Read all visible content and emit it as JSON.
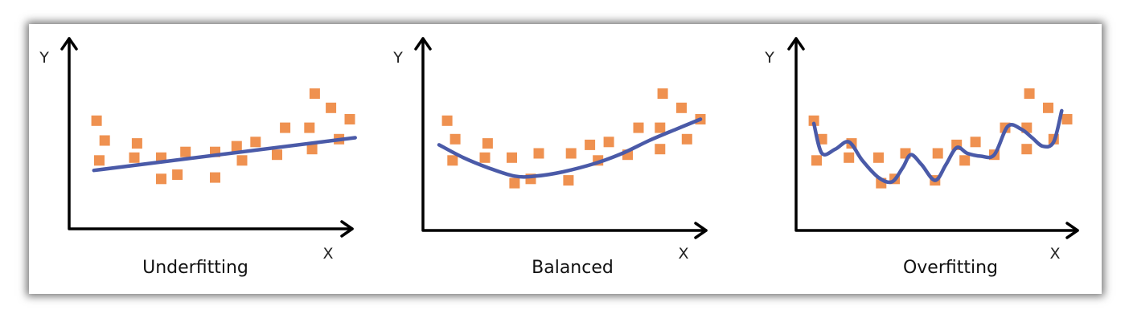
{
  "colors": {
    "point": "#ef9150",
    "curve": "#4a5aa8",
    "axis": "#000000"
  },
  "panels": [
    {
      "id": "underfitting",
      "caption": "Underfitting",
      "x_axis_label": "X",
      "y_axis_label": "Y",
      "points": [
        [
          0.6,
          6.2
        ],
        [
          0.9,
          4.8
        ],
        [
          0.7,
          3.4
        ],
        [
          2.1,
          4.6
        ],
        [
          2.0,
          3.6
        ],
        [
          3.0,
          3.6
        ],
        [
          3.0,
          2.1
        ],
        [
          3.6,
          2.4
        ],
        [
          3.9,
          4.0
        ],
        [
          5.0,
          4.0
        ],
        [
          5.0,
          2.2
        ],
        [
          5.8,
          4.4
        ],
        [
          6.0,
          3.4
        ],
        [
          6.5,
          4.7
        ],
        [
          7.3,
          3.8
        ],
        [
          7.6,
          5.7
        ],
        [
          8.5,
          5.7
        ],
        [
          8.6,
          4.2
        ],
        [
          8.7,
          8.1
        ],
        [
          9.3,
          7.1
        ],
        [
          9.6,
          4.9
        ],
        [
          10.0,
          6.3
        ]
      ],
      "curve": [
        [
          0.5,
          2.7
        ],
        [
          10.2,
          5.0
        ]
      ]
    },
    {
      "id": "balanced",
      "caption": "Balanced",
      "x_axis_label": "X",
      "y_axis_label": "Y",
      "points": [
        [
          0.6,
          6.2
        ],
        [
          0.9,
          4.9
        ],
        [
          0.8,
          3.4
        ],
        [
          2.1,
          4.6
        ],
        [
          2.0,
          3.6
        ],
        [
          3.0,
          3.6
        ],
        [
          3.1,
          1.8
        ],
        [
          3.7,
          2.1
        ],
        [
          4.0,
          3.9
        ],
        [
          5.2,
          3.9
        ],
        [
          5.1,
          2.0
        ],
        [
          5.9,
          4.5
        ],
        [
          6.2,
          3.4
        ],
        [
          6.6,
          4.7
        ],
        [
          7.3,
          3.8
        ],
        [
          7.7,
          5.7
        ],
        [
          8.5,
          5.7
        ],
        [
          8.5,
          4.2
        ],
        [
          8.6,
          8.1
        ],
        [
          9.3,
          7.1
        ],
        [
          9.5,
          4.9
        ],
        [
          10.0,
          6.3
        ]
      ],
      "curve": [
        [
          0.3,
          4.5
        ],
        [
          1.2,
          3.6
        ],
        [
          2.1,
          2.9
        ],
        [
          3.1,
          2.3
        ],
        [
          3.9,
          2.3
        ],
        [
          4.9,
          2.6
        ],
        [
          6.1,
          3.2
        ],
        [
          7.1,
          3.9
        ],
        [
          8.1,
          4.8
        ],
        [
          9.1,
          5.6
        ],
        [
          10.0,
          6.3
        ]
      ]
    },
    {
      "id": "overfitting",
      "caption": "Overfitting",
      "x_axis_label": "X",
      "y_axis_label": "Y",
      "points": [
        [
          0.6,
          6.2
        ],
        [
          0.9,
          4.9
        ],
        [
          0.7,
          3.4
        ],
        [
          2.0,
          4.6
        ],
        [
          1.9,
          3.6
        ],
        [
          3.0,
          3.6
        ],
        [
          3.1,
          1.8
        ],
        [
          3.6,
          2.1
        ],
        [
          4.0,
          3.9
        ],
        [
          5.2,
          3.9
        ],
        [
          5.1,
          2.0
        ],
        [
          5.9,
          4.5
        ],
        [
          6.2,
          3.4
        ],
        [
          6.6,
          4.7
        ],
        [
          7.3,
          3.8
        ],
        [
          7.7,
          5.7
        ],
        [
          8.5,
          5.7
        ],
        [
          8.5,
          4.2
        ],
        [
          8.6,
          8.1
        ],
        [
          9.3,
          7.1
        ],
        [
          9.5,
          4.9
        ],
        [
          10.0,
          6.3
        ]
      ],
      "curve": [
        [
          0.6,
          6.0
        ],
        [
          0.9,
          3.9
        ],
        [
          1.4,
          4.2
        ],
        [
          1.9,
          4.7
        ],
        [
          2.4,
          3.4
        ],
        [
          3.0,
          2.2
        ],
        [
          3.5,
          1.9
        ],
        [
          3.9,
          2.9
        ],
        [
          4.2,
          3.8
        ],
        [
          4.6,
          3.1
        ],
        [
          5.1,
          2.0
        ],
        [
          5.5,
          3.1
        ],
        [
          5.9,
          4.3
        ],
        [
          6.3,
          3.9
        ],
        [
          6.8,
          3.7
        ],
        [
          7.3,
          3.8
        ],
        [
          7.8,
          5.8
        ],
        [
          8.3,
          5.6
        ],
        [
          8.7,
          5.0
        ],
        [
          9.1,
          4.4
        ],
        [
          9.5,
          4.7
        ],
        [
          9.8,
          6.9
        ]
      ]
    }
  ]
}
